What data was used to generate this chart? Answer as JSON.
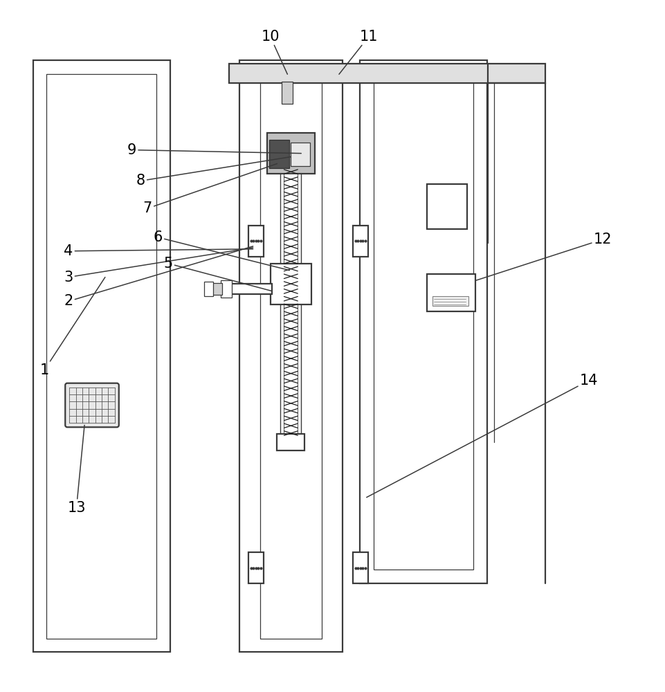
{
  "bg_color": "#ffffff",
  "line_color": "#3a3a3a",
  "lw": 1.6,
  "thin_lw": 0.9,
  "fig_width": 9.61,
  "fig_height": 10.0
}
